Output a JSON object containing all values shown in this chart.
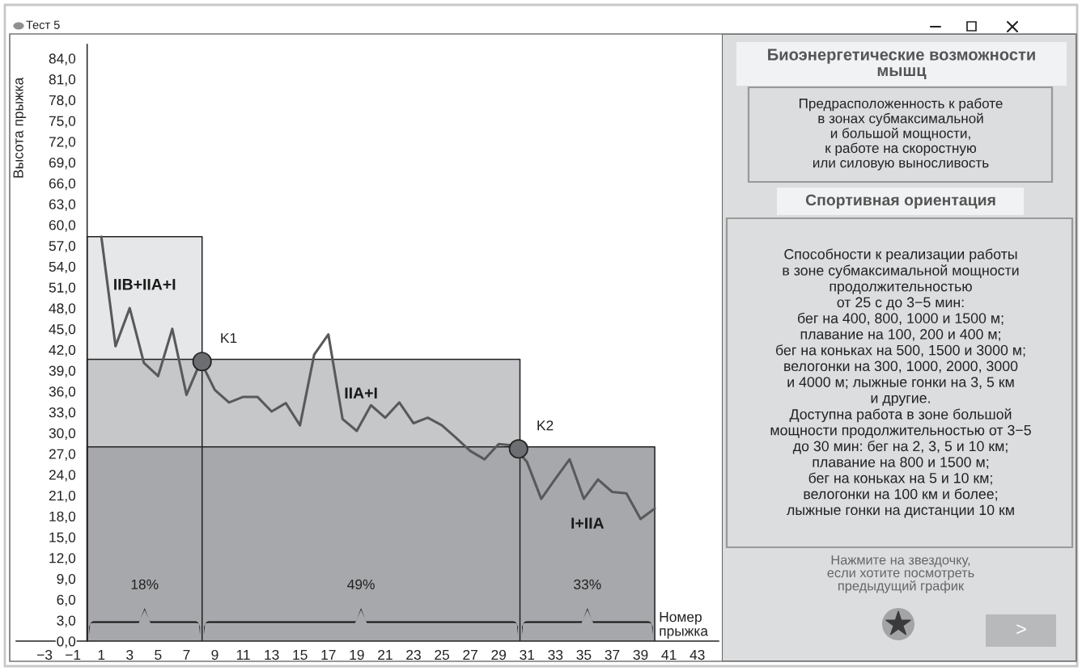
{
  "chart_data": [
    {
      "type": "line",
      "title": "Тест 5",
      "xlabel": "Номер\nпрыжка",
      "ylabel": "Высота прыжка",
      "xlim": [
        -5,
        44.5
      ],
      "ylim": [
        0,
        86
      ],
      "xticks": [
        {
          "value": -3,
          "label": "−3"
        },
        {
          "value": -1,
          "label": "−1"
        },
        1,
        3,
        5,
        7,
        9,
        11,
        13,
        15,
        17,
        19,
        21,
        23,
        25,
        27,
        29,
        31,
        33,
        35,
        37,
        39,
        41,
        43
      ],
      "yticks": [
        {
          "value": 0,
          "label": "0,0"
        },
        {
          "value": 3,
          "label": "3,0"
        },
        {
          "value": 6,
          "label": "6,0"
        },
        {
          "value": 9,
          "label": "9,0"
        },
        {
          "value": 12,
          "label": "12,0"
        },
        {
          "value": 15,
          "label": "15,0"
        },
        {
          "value": 18,
          "label": "18,0"
        },
        {
          "value": 21,
          "label": "21,0"
        },
        {
          "value": 24,
          "label": "24,0"
        },
        {
          "value": 27,
          "label": "27,0"
        },
        {
          "value": 30,
          "label": "30,0"
        },
        {
          "value": 33,
          "label": "33,0"
        },
        {
          "value": 36,
          "label": "36,0"
        },
        {
          "value": 39,
          "label": "39,0"
        },
        {
          "value": 42,
          "label": "42,0"
        },
        {
          "value": 45,
          "label": "45,0"
        },
        {
          "value": 48,
          "label": "48,0"
        },
        {
          "value": 51,
          "label": "51,0"
        },
        {
          "value": 54,
          "label": "54,0"
        },
        {
          "value": 57,
          "label": "57,0"
        },
        {
          "value": 60,
          "label": "60,0"
        },
        {
          "value": 63,
          "label": "63,0"
        },
        {
          "value": 66,
          "label": "66,0"
        },
        {
          "value": 69,
          "label": "69,0"
        },
        {
          "value": 72,
          "label": "72,0"
        },
        {
          "value": 75,
          "label": "75,0"
        },
        {
          "value": 78,
          "label": "78,0"
        },
        {
          "value": 81,
          "label": "81,0"
        },
        {
          "value": 84,
          "label": "84,0"
        }
      ],
      "series": [
        {
          "type": "area",
          "name": "IIB+IIA+I",
          "color": "#e6e7e9",
          "x": [
            0,
            8.1
          ],
          "values": [
            58.3,
            58.3
          ]
        },
        {
          "type": "area",
          "name": "IIA+I",
          "color": "#c6c7c9",
          "x": [
            0,
            30.5
          ],
          "values": [
            40.6,
            40.6
          ]
        },
        {
          "type": "area",
          "name": "I+IIA",
          "color": "#a7a8ab",
          "x": [
            0,
            40.0
          ],
          "values": [
            28.0,
            28.0
          ]
        },
        {
          "type": "line",
          "color": "#58595b",
          "x": [
            1,
            2,
            3,
            4,
            5,
            6,
            7,
            8,
            9,
            10,
            11,
            12,
            13,
            14,
            15,
            16,
            17,
            18,
            19,
            20,
            21,
            22,
            23,
            24,
            25,
            26,
            27,
            28,
            29,
            30,
            31,
            32,
            33,
            34,
            35,
            36,
            37,
            38,
            39,
            40
          ],
          "values": [
            58.3,
            42.5,
            48.0,
            40.1,
            38.2,
            45.0,
            35.5,
            40.3,
            36.2,
            34.4,
            35.2,
            35.2,
            33.1,
            34.3,
            31.1,
            41.3,
            44.2,
            32.0,
            30.3,
            34.0,
            32.2,
            34.4,
            31.4,
            32.2,
            31.1,
            29.3,
            27.4,
            26.2,
            28.4,
            28.2,
            25.8,
            20.5,
            23.4,
            26.2,
            20.5,
            23.3,
            21.5,
            21.3,
            17.6,
            19.1
          ]
        },
        {
          "type": "scatter",
          "color": "#6d6e71",
          "marker": "circle",
          "x": [
            8.1,
            30.4
          ],
          "values": [
            40.3,
            27.7
          ]
        }
      ],
      "annotations": [
        {
          "text": "K1",
          "x": 8.1,
          "y": 40.3
        },
        {
          "text": "K2",
          "x": 30.4,
          "y": 27.7
        },
        "18%",
        "49%",
        "33%"
      ]
    },
    {
      "type": "other",
      "title": "Биоэнергетические возможности\nмышц",
      "annotations": [
        "Предрасположенность к работе\nв зонах субмаксимальной\nи большой мощности,\nк работе на скоростную\nили силовую выносливость",
        "Спортивная ориентация",
        "Способности к реализации работы\nв зоне субмаксимальной мощности\nпродолжительностью\nот 25 с до 3−5 мин:\nбег на 400, 800, 1000 и 1500 м;\nплавание на 100, 200 и 400 м;\nбег на коньках на 500, 1500 и 3000 м;\nвелогонки на 300, 1000, 2000, 3000\nи 4000 м; лыжные гонки на 3, 5 км\nи другие.\nДоступна работа в зоне большой\nмощности продолжительностью от 3−5\nдо 30 мин: бег на 2, 3, 5 и 10 км;\nплавание на 800 и 1500 м;\nбег на коньках на 5 и 10 км;\nвелогонки на 100 км и более;\nлыжные гонки на дистанции 10 км",
        "Нажмите на звездочку,\nесли хотите посмотреть\nпредыдущий график",
        ">"
      ]
    }
  ]
}
